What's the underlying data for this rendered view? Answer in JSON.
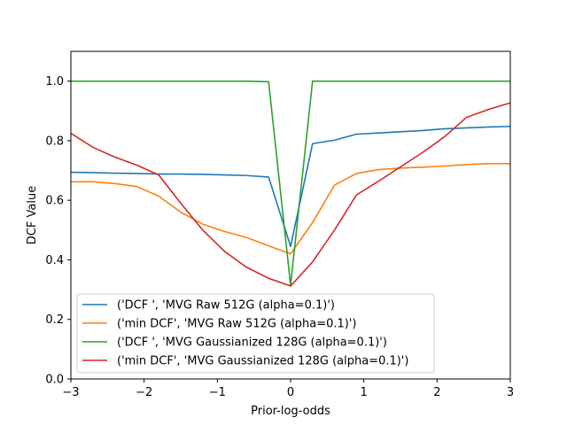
{
  "chart_data": {
    "type": "line",
    "title": "",
    "xlabel": "Prior-log-odds",
    "ylabel": "DCF Value",
    "xlim": [
      -3,
      3
    ],
    "ylim": [
      0.0,
      1.1
    ],
    "xticks": [
      -3,
      -2,
      -1,
      0,
      1,
      2,
      3
    ],
    "xtick_labels": [
      "−3",
      "−2",
      "−1",
      "0",
      "1",
      "2",
      "3"
    ],
    "yticks": [
      0.0,
      0.2,
      0.4,
      0.6,
      0.8,
      1.0
    ],
    "ytick_labels": [
      "0.0",
      "0.2",
      "0.4",
      "0.6",
      "0.8",
      "1.0"
    ],
    "grid": false,
    "legend_position": "lower-center",
    "x": [
      -3.0,
      -2.7,
      -2.4,
      -2.1,
      -1.8,
      -1.5,
      -1.2,
      -0.9,
      -0.6,
      -0.3,
      0.0,
      0.3,
      0.6,
      0.9,
      1.2,
      1.5,
      1.8,
      2.1,
      2.4,
      2.7,
      3.0
    ],
    "series": [
      {
        "name": "('DCF ', 'MVG Raw 512G (alpha=0.1)')",
        "color": "#1f77b4",
        "values": [
          0.694,
          0.693,
          0.691,
          0.69,
          0.688,
          0.688,
          0.687,
          0.685,
          0.683,
          0.678,
          0.445,
          0.79,
          0.802,
          0.822,
          0.826,
          0.83,
          0.834,
          0.84,
          0.843,
          0.846,
          0.848
        ]
      },
      {
        "name": "('min DCF', 'MVG Raw 512G (alpha=0.1)')",
        "color": "#ff7f0e",
        "values": [
          0.662,
          0.662,
          0.656,
          0.646,
          0.614,
          0.56,
          0.52,
          0.495,
          0.475,
          0.447,
          0.42,
          0.525,
          0.651,
          0.69,
          0.703,
          0.708,
          0.711,
          0.715,
          0.72,
          0.723,
          0.723
        ]
      },
      {
        "name": "('DCF ', 'MVG Gaussianized 128G (alpha=0.1)')",
        "color": "#2ca02c",
        "values": [
          1.0,
          1.0,
          1.0,
          1.0,
          1.0,
          1.0,
          1.0,
          1.0,
          1.0,
          0.998,
          0.315,
          1.0,
          1.0,
          1.0,
          1.0,
          1.0,
          1.0,
          1.0,
          1.0,
          1.0,
          1.0
        ]
      },
      {
        "name": "('min DCF', 'MVG Gaussianized 128G (alpha=0.1)')",
        "color": "#d62728",
        "values": [
          0.825,
          0.778,
          0.745,
          0.718,
          0.685,
          0.59,
          0.5,
          0.428,
          0.375,
          0.338,
          0.312,
          0.393,
          0.5,
          0.618,
          0.664,
          0.712,
          0.76,
          0.813,
          0.878,
          0.905,
          0.927
        ]
      }
    ]
  }
}
